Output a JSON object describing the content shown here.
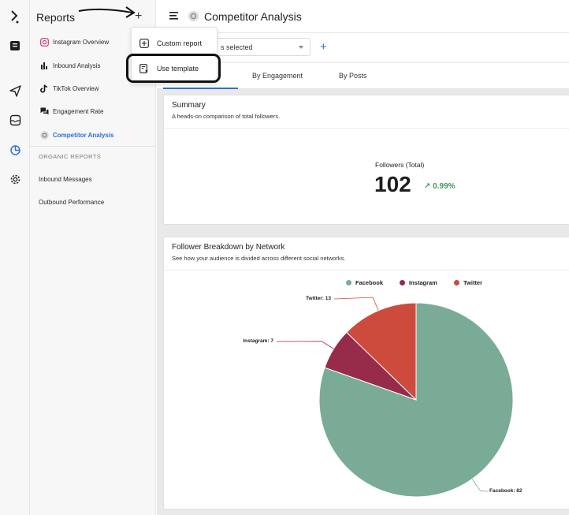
{
  "nav": {
    "title": "Reports",
    "items": [
      {
        "label": "Instagram Overview",
        "icon": "instagram-icon",
        "top": 43
      },
      {
        "label": "Inbound Analysis",
        "icon": "bar-chart-icon",
        "top": 73
      },
      {
        "label": "TikTok Overview",
        "icon": "tiktok-icon",
        "top": 102
      },
      {
        "label": "Engagement Rate",
        "icon": "chat-icon",
        "top": 131
      },
      {
        "label": "Competitor Analysis",
        "icon": "competitor-icon",
        "top": 161
      }
    ],
    "section_label": "ORGANIC REPORTS",
    "plain_items": [
      "Inbound Messages",
      "Outbound Performance"
    ]
  },
  "dropdown": {
    "custom_report": "Custom report",
    "use_template": "Use template"
  },
  "header": {
    "title": "Competitor Analysis"
  },
  "filter": {
    "select_value": "s selected"
  },
  "tabs": [
    "By Engagement",
    "By Posts"
  ],
  "summary": {
    "title": "Summary",
    "subtitle": "A heads-on comparison of total followers.",
    "kpi_label": "Followers (Total)",
    "kpi_value": "102",
    "kpi_delta": "0.99%"
  },
  "breakdown": {
    "title": "Follower Breakdown by Network",
    "subtitle": "See how your audience is divided across different social networks."
  },
  "chart_data": {
    "type": "pie",
    "categories": [
      "Facebook",
      "Instagram",
      "Twitter"
    ],
    "values": [
      82,
      7,
      13
    ],
    "colors": [
      "#7aab96",
      "#962b4a",
      "#cd4b3d"
    ],
    "labels": [
      "Facebook: 82",
      "Instagram: 7",
      "Twitter: 13"
    ]
  },
  "colors": {
    "accent": "#2f6fd6",
    "positive": "#3f9a62"
  }
}
